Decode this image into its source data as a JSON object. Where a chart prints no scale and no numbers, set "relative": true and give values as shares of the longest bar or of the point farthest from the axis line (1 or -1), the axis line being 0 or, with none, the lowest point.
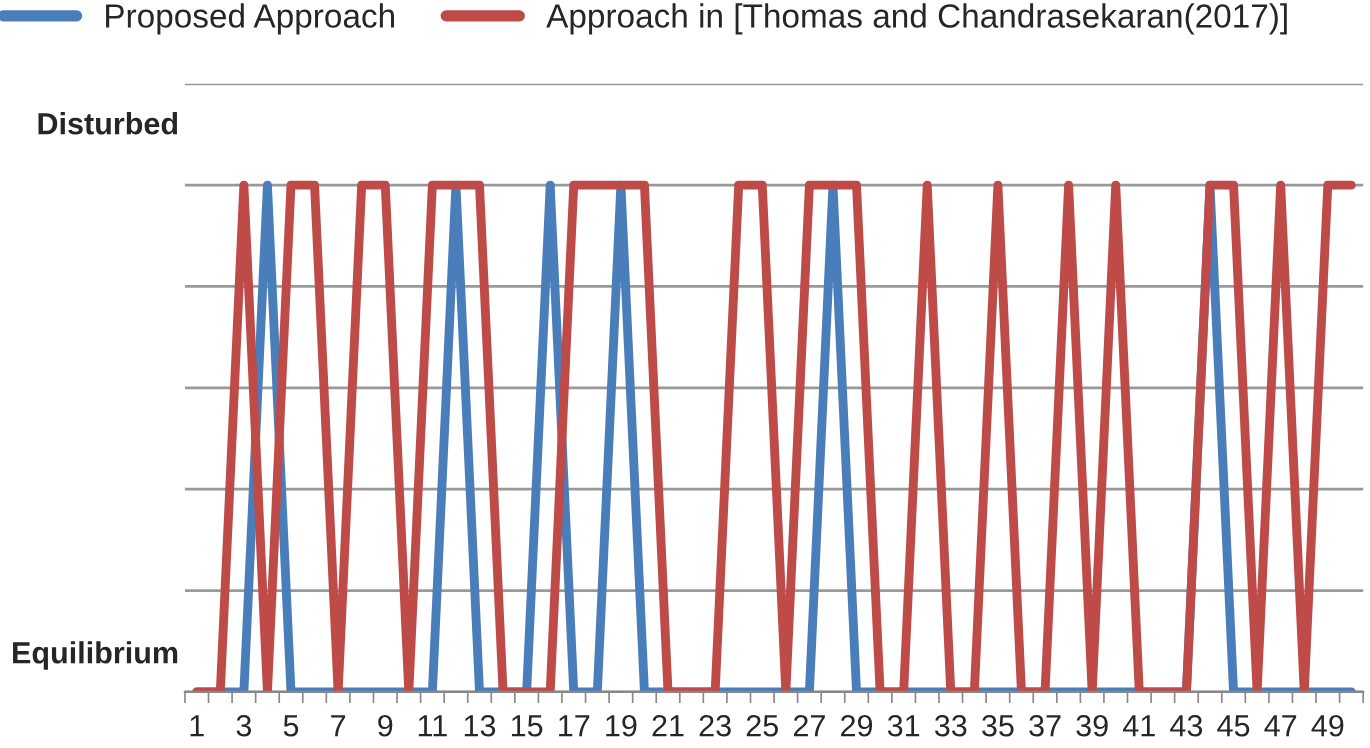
{
  "chart_data": {
    "type": "line",
    "categories": [
      "1",
      null,
      "3",
      null,
      "5",
      null,
      "7",
      null,
      "9",
      null,
      "11",
      null,
      "13",
      null,
      "15",
      null,
      "17",
      null,
      "19",
      null,
      "21",
      null,
      "23",
      null,
      "25",
      null,
      "27",
      null,
      "29",
      null,
      "31",
      null,
      "33",
      null,
      "35",
      null,
      "37",
      null,
      "39",
      null,
      "41",
      null,
      "43",
      null,
      "45",
      null,
      "47",
      null,
      "49",
      null
    ],
    "series": [
      {
        "name": "Proposed Approach",
        "color": "#4a7ebb",
        "values": [
          0,
          0,
          0,
          1,
          0,
          0,
          0,
          0,
          0,
          0,
          0,
          1,
          0,
          0,
          0,
          1,
          0,
          0,
          1,
          0,
          0,
          0,
          0,
          0,
          0,
          0,
          0,
          1,
          0,
          0,
          0,
          0,
          0,
          0,
          0,
          0,
          0,
          0,
          0,
          0,
          0,
          0,
          0,
          1,
          0,
          0,
          0,
          0,
          0,
          0
        ]
      },
      {
        "name": "Approach in [Thomas and Chandrasekaran(2017)]",
        "color": "#be4b48",
        "values": [
          0,
          0,
          1,
          0,
          1,
          1,
          0,
          1,
          1,
          0,
          1,
          1,
          1,
          0,
          0,
          0,
          1,
          1,
          1,
          1,
          0,
          0,
          0,
          1,
          1,
          0,
          1,
          1,
          1,
          0,
          0,
          1,
          0,
          0,
          1,
          0,
          0,
          1,
          0,
          1,
          0,
          0,
          0,
          1,
          1,
          0,
          1,
          0,
          1,
          1
        ]
      }
    ],
    "relative": true,
    "annotations": [
      "Disturbed",
      "Equilibrium"
    ],
    "grid": "y",
    "legend": "top left",
    "marker": "none",
    "line_style": "solid"
  }
}
